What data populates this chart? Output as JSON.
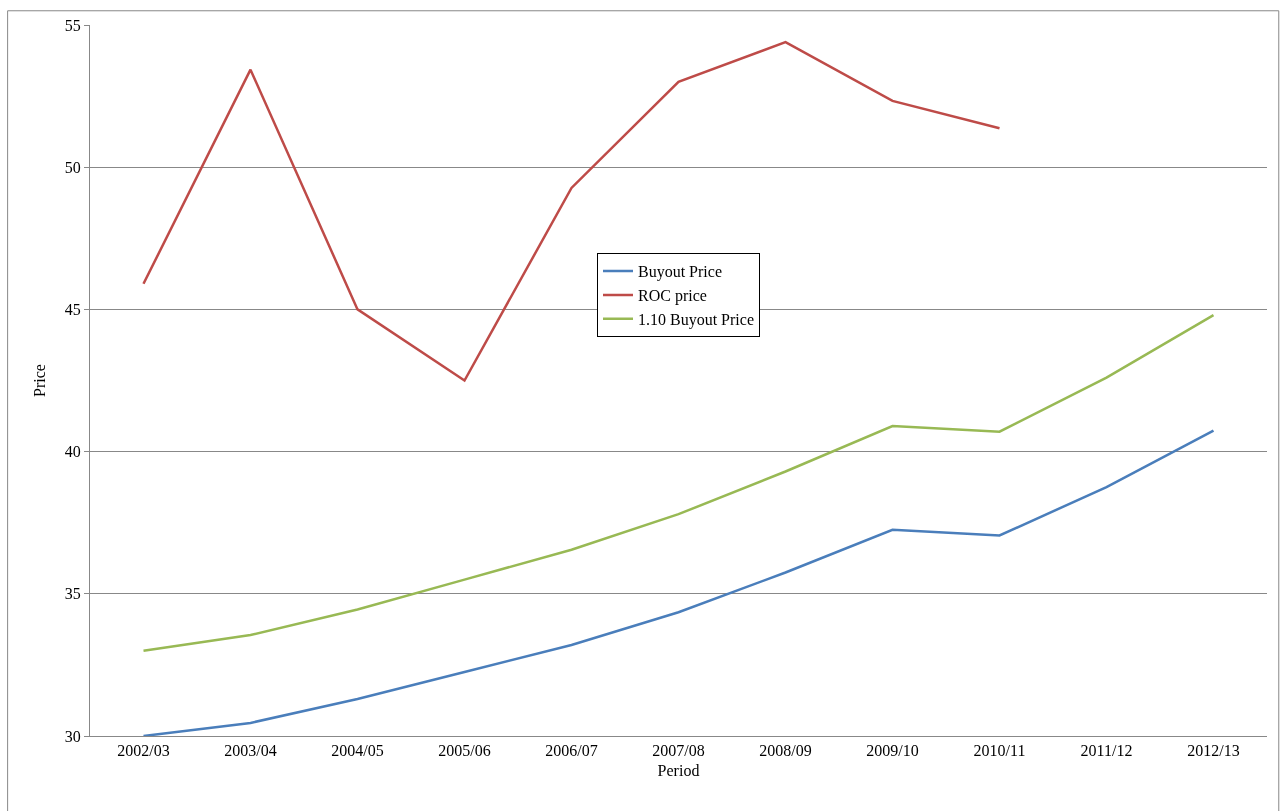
{
  "chart_data": {
    "type": "line",
    "xlabel": "Period",
    "ylabel": "Price",
    "categories": [
      "2002/03",
      "2003/04",
      "2004/05",
      "2005/06",
      "2006/07",
      "2007/08",
      "2008/09",
      "2009/10",
      "2010/11",
      "2011/12",
      "2012/13"
    ],
    "series": [
      {
        "name": "Buyout Price",
        "color": "#4a7ebb",
        "values": [
          30.0,
          30.46,
          31.3,
          32.25,
          33.2,
          34.35,
          35.75,
          37.25,
          37.05,
          38.75,
          40.74
        ]
      },
      {
        "name": "ROC price",
        "color": "#be4b48",
        "values": [
          45.9,
          53.43,
          45.0,
          42.5,
          49.27,
          53.0,
          54.4,
          52.33,
          51.37,
          null,
          null
        ]
      },
      {
        "name": "1.10 Buyout Price",
        "color": "#98b954",
        "values": [
          33.0,
          33.55,
          34.45,
          35.5,
          36.55,
          37.8,
          39.3,
          40.9,
          40.7,
          42.6,
          44.8
        ]
      }
    ],
    "ylim": [
      30,
      55
    ],
    "yticks": [
      30,
      35,
      40,
      45,
      50,
      55
    ],
    "grid": "y",
    "legend": "center",
    "marker": "none",
    "line_style": "solid"
  }
}
